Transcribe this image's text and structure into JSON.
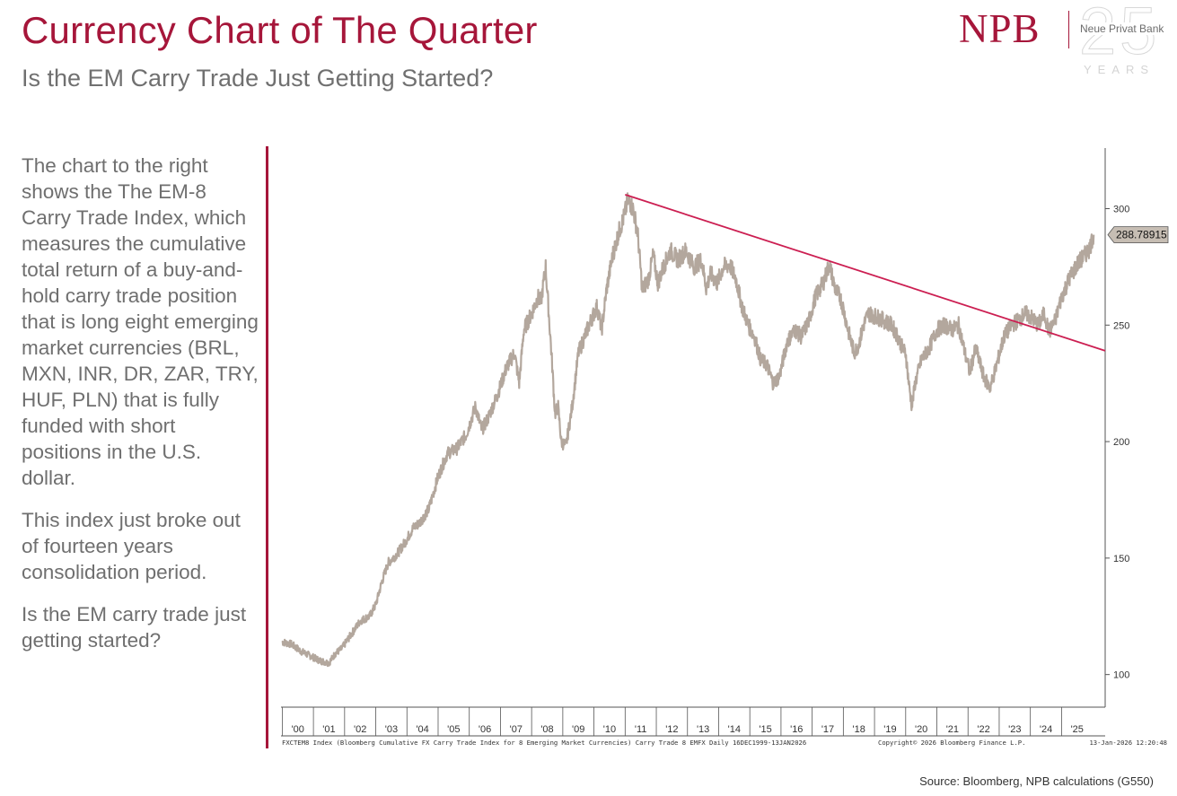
{
  "header": {
    "title": "Currency Chart of The Quarter",
    "subtitle": "Is the EM Carry Trade Just Getting Started?"
  },
  "logo": {
    "name": "NPB",
    "bank_name": "Neue Privat Bank",
    "anniversary_number": "25",
    "anniversary_word": "YEARS"
  },
  "commentary": {
    "paragraphs": [
      "The chart to the right shows the The EM-8 Carry Trade Index, which measures the cumulative total return of a buy-and-hold carry trade position that is long eight emerging market currencies (BRL, MXN, INR, DR, ZAR, TRY, HUF, PLN) that is fully funded with short positions in the U.S. dollar.",
      "This index just broke out of fourteen years consolidation period.",
      "Is the EM carry trade just getting started?"
    ]
  },
  "chart_data": {
    "type": "line",
    "title": "FXCTEM8 Index",
    "xlabel": "",
    "ylabel": "",
    "ylim": [
      86,
      326
    ],
    "xlim": [
      1999.96,
      2026.4
    ],
    "yticks": [
      100,
      150,
      200,
      250,
      300
    ],
    "x_tick_labels": [
      "'00",
      "'01",
      "'02",
      "'03",
      "'04",
      "'05",
      "'06",
      "'07",
      "'08",
      "'09",
      "'10",
      "'11",
      "'12",
      "'13",
      "'14",
      "'15",
      "'16",
      "'17",
      "'18",
      "'19",
      "'20",
      "'21",
      "'22",
      "'23",
      "'24",
      "'25"
    ],
    "line_color": "#b3a79d",
    "trend_color": "#cc1f52",
    "series": [
      {
        "name": "FXCTEM8 Index",
        "points": [
          [
            2000.0,
            114
          ],
          [
            2000.3,
            113
          ],
          [
            2000.6,
            110
          ],
          [
            2000.9,
            108
          ],
          [
            2001.2,
            106
          ],
          [
            2001.5,
            105
          ],
          [
            2001.7,
            109
          ],
          [
            2001.9,
            111
          ],
          [
            2002.2,
            117
          ],
          [
            2002.5,
            123
          ],
          [
            2002.8,
            125
          ],
          [
            2003.0,
            130
          ],
          [
            2003.2,
            140
          ],
          [
            2003.4,
            148
          ],
          [
            2003.7,
            152
          ],
          [
            2003.95,
            157
          ],
          [
            2004.2,
            163
          ],
          [
            2004.4,
            165
          ],
          [
            2004.7,
            171
          ],
          [
            2005.0,
            185
          ],
          [
            2005.3,
            195
          ],
          [
            2005.6,
            197
          ],
          [
            2005.9,
            203
          ],
          [
            2006.2,
            215
          ],
          [
            2006.4,
            205
          ],
          [
            2006.6,
            210
          ],
          [
            2006.9,
            220
          ],
          [
            2007.2,
            232
          ],
          [
            2007.45,
            238
          ],
          [
            2007.6,
            225
          ],
          [
            2007.75,
            248
          ],
          [
            2008.0,
            255
          ],
          [
            2008.2,
            262
          ],
          [
            2008.3,
            260
          ],
          [
            2008.45,
            275
          ],
          [
            2008.55,
            255
          ],
          [
            2008.65,
            235
          ],
          [
            2008.75,
            212
          ],
          [
            2008.85,
            215
          ],
          [
            2008.95,
            200
          ],
          [
            2009.1,
            198
          ],
          [
            2009.3,
            215
          ],
          [
            2009.5,
            238
          ],
          [
            2009.7,
            245
          ],
          [
            2009.9,
            252
          ],
          [
            2010.1,
            258
          ],
          [
            2010.25,
            248
          ],
          [
            2010.4,
            265
          ],
          [
            2010.6,
            280
          ],
          [
            2010.8,
            290
          ],
          [
            2010.95,
            296
          ],
          [
            2011.1,
            304
          ],
          [
            2011.25,
            300
          ],
          [
            2011.4,
            290
          ],
          [
            2011.55,
            265
          ],
          [
            2011.75,
            270
          ],
          [
            2011.9,
            280
          ],
          [
            2012.05,
            268
          ],
          [
            2012.2,
            274
          ],
          [
            2012.45,
            282
          ],
          [
            2012.7,
            278
          ],
          [
            2012.95,
            282
          ],
          [
            2013.2,
            275
          ],
          [
            2013.45,
            278
          ],
          [
            2013.6,
            266
          ],
          [
            2013.75,
            272
          ],
          [
            2013.95,
            268
          ],
          [
            2014.15,
            275
          ],
          [
            2014.35,
            276
          ],
          [
            2014.55,
            270
          ],
          [
            2014.75,
            258
          ],
          [
            2014.95,
            250
          ],
          [
            2015.15,
            245
          ],
          [
            2015.35,
            235
          ],
          [
            2015.55,
            233
          ],
          [
            2015.75,
            225
          ],
          [
            2015.95,
            228
          ],
          [
            2016.2,
            243
          ],
          [
            2016.45,
            248
          ],
          [
            2016.65,
            245
          ],
          [
            2016.9,
            252
          ],
          [
            2017.1,
            262
          ],
          [
            2017.35,
            268
          ],
          [
            2017.55,
            276
          ],
          [
            2017.75,
            265
          ],
          [
            2017.9,
            262
          ],
          [
            2018.0,
            257
          ],
          [
            2018.15,
            248
          ],
          [
            2018.35,
            238
          ],
          [
            2018.5,
            242
          ],
          [
            2018.65,
            250
          ],
          [
            2018.8,
            255
          ],
          [
            2019.0,
            254
          ],
          [
            2019.3,
            252
          ],
          [
            2019.55,
            250
          ],
          [
            2019.75,
            245
          ],
          [
            2019.9,
            240
          ],
          [
            2020.0,
            238
          ],
          [
            2020.1,
            225
          ],
          [
            2020.2,
            215
          ],
          [
            2020.3,
            225
          ],
          [
            2020.5,
            235
          ],
          [
            2020.75,
            240
          ],
          [
            2021.0,
            248
          ],
          [
            2021.25,
            250
          ],
          [
            2021.5,
            248
          ],
          [
            2021.7,
            250
          ],
          [
            2021.9,
            238
          ],
          [
            2022.05,
            230
          ],
          [
            2022.25,
            240
          ],
          [
            2022.5,
            228
          ],
          [
            2022.7,
            223
          ],
          [
            2022.9,
            232
          ],
          [
            2023.15,
            245
          ],
          [
            2023.4,
            250
          ],
          [
            2023.6,
            252
          ],
          [
            2023.85,
            255
          ],
          [
            2024.05,
            253
          ],
          [
            2024.25,
            250
          ],
          [
            2024.45,
            255
          ],
          [
            2024.6,
            247
          ],
          [
            2024.8,
            252
          ],
          [
            2025.0,
            262
          ],
          [
            2025.25,
            270
          ],
          [
            2025.5,
            276
          ],
          [
            2025.75,
            280
          ],
          [
            2025.9,
            283
          ],
          [
            2026.03,
            288.8
          ]
        ]
      },
      {
        "name": "Trendline",
        "points": [
          [
            2011.0,
            306
          ],
          [
            2026.4,
            239
          ]
        ]
      }
    ],
    "last_value_label": "288.78915",
    "last_value": 288.78915,
    "footer_left": "FXCTEM8 Index (Bloomberg Cumulative FX Carry Trade Index for 8 Emerging Market Currencies) Carry Trade 8 EMFX Daily 16DEC1999-13JAN2026",
    "footer_mid": "Copyright© 2026 Bloomberg Finance L.P.",
    "footer_right": "13-Jan-2026 12:20:48"
  },
  "footer": {
    "source": "Source: Bloomberg, NPB calculations  (G550)"
  }
}
